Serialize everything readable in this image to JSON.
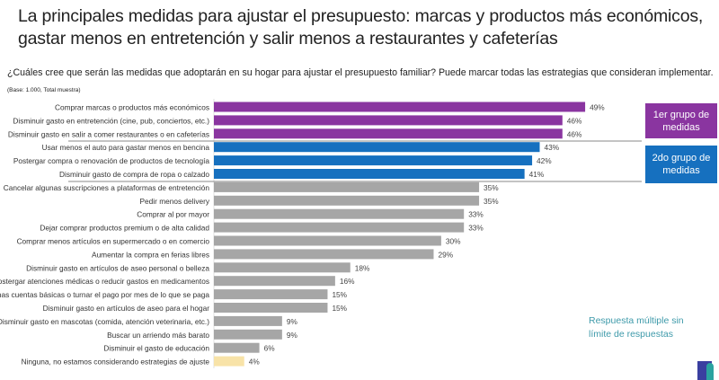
{
  "title": "La principales medidas para ajustar el presupuesto: marcas y productos más económicos, gastar menos en entretención y salir menos a restaurantes y cafeterías",
  "question": "¿Cuáles cree que serán las medidas que adoptarán en su hogar para ajustar el presupuesto familiar? Puede marcar todas las estrategias que consideran implementar.",
  "base_note": "(Base: 1.000, Total muestra)",
  "group1_label": "1er grupo de medidas",
  "group2_label": "2do grupo de medidas",
  "note": "Respuesta múltiple sin límite de respuestas",
  "colors": {
    "group1": "#8a35a0",
    "group2": "#1670bf",
    "other": "#a6a6a6",
    "none": "#f8e3a8"
  },
  "chart_data": {
    "type": "bar",
    "orientation": "horizontal",
    "categories": [
      "Comprar marcas o productos más económicos",
      "Disminuir gasto en entretención (cine, pub, conciertos, etc.)",
      "Disminuir gasto en salir a comer restaurantes o en cafeterías",
      "Usar menos el auto para gastar menos en bencina",
      "Postergar compra o renovación de productos de tecnología",
      "Disminuir gasto de compra de ropa o calzado",
      "Cancelar algunas suscripciones a plataformas de entretención",
      "Pedir menos delivery",
      "Comprar al por mayor",
      "Dejar comprar productos premium o de alta calidad",
      "Comprar menos artículos en supermercado o en comercio",
      "Aumentar la compra en ferias libres",
      "Disminuir gasto en artículos de aseo personal o belleza",
      "Postergar atenciones médicas o reducir gastos en medicamentos",
      "Dejar de pagar algunas cuentas básicas o turnar el pago por mes de lo que se paga",
      "Disminuir gasto en artículos de aseo para el hogar",
      "Disminuir gasto en mascotas (comida, atención veterinaria, etc.)",
      "Buscar un arriendo más barato",
      "Disminuir el gasto de educación",
      "Ninguna, no estamos considerando estrategias de ajuste"
    ],
    "values": [
      49,
      46,
      46,
      43,
      42,
      41,
      35,
      35,
      33,
      33,
      30,
      29,
      18,
      16,
      15,
      15,
      9,
      9,
      6,
      4
    ],
    "labels": [
      "49%",
      "46%",
      "46%",
      "43%",
      "42%",
      "41%",
      "35%",
      "35%",
      "33%",
      "33%",
      "30%",
      "29%",
      "18%",
      "16%",
      "15%",
      "15%",
      "9%",
      "9%",
      "6%",
      "4%"
    ],
    "groups": [
      "group1",
      "group1",
      "group1",
      "group2",
      "group2",
      "group2",
      "other",
      "other",
      "other",
      "other",
      "other",
      "other",
      "other",
      "other",
      "other",
      "other",
      "other",
      "other",
      "other",
      "none"
    ],
    "unit": "%"
  }
}
